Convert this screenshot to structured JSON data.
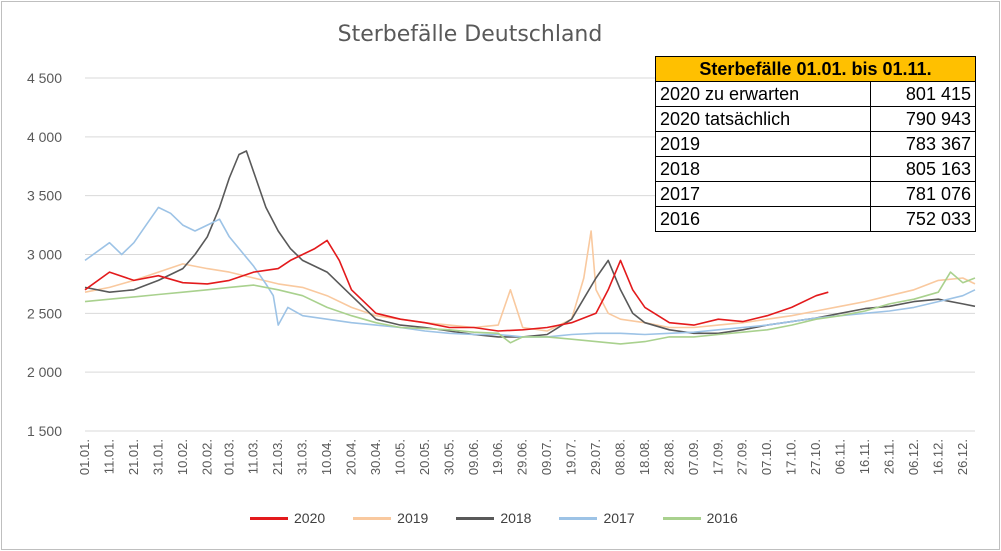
{
  "chart_data": {
    "type": "line",
    "title": "Sterbefälle Deutschland",
    "xlabel": "",
    "ylabel": "",
    "ylim": [
      1500,
      4500
    ],
    "yticks": [
      "1 500",
      "2 000",
      "2 500",
      "3 000",
      "3 500",
      "4 000",
      "4 500"
    ],
    "ytick_values": [
      1500,
      2000,
      2500,
      3000,
      3500,
      4000,
      4500
    ],
    "x_domain": [
      "01.01.",
      "31.12."
    ],
    "xticks": [
      "01.01.",
      "11.01.",
      "21.01.",
      "31.01.",
      "10.02.",
      "20.02.",
      "01.03.",
      "11.03.",
      "21.03.",
      "31.03.",
      "10.04.",
      "20.04.",
      "30.04.",
      "10.05.",
      "20.05.",
      "30.05.",
      "09.06.",
      "19.06.",
      "29.06.",
      "09.07.",
      "19.07.",
      "29.07.",
      "08.08.",
      "18.08.",
      "28.08.",
      "07.09.",
      "17.09.",
      "27.09.",
      "07.10.",
      "17.10.",
      "27.10.",
      "06.11.",
      "16.11.",
      "26.11.",
      "06.12.",
      "16.12.",
      "26.12."
    ],
    "legend_position": "bottom",
    "grid": "horizontal",
    "series": [
      {
        "name": "2020",
        "color": "#e31a1c",
        "x": [
          "01.01.",
          "11.01.",
          "21.01.",
          "31.01.",
          "10.02.",
          "20.02.",
          "01.03.",
          "11.03.",
          "21.03.",
          "26.03.",
          "31.03.",
          "05.04.",
          "10.04.",
          "15.04.",
          "20.04.",
          "30.04.",
          "10.05.",
          "20.05.",
          "30.05.",
          "09.06.",
          "19.06.",
          "29.06.",
          "09.07.",
          "19.07.",
          "29.07.",
          "03.08.",
          "08.08.",
          "13.08.",
          "18.08.",
          "28.08.",
          "07.09.",
          "17.09.",
          "27.09.",
          "07.10.",
          "17.10.",
          "27.10.",
          "01.11."
        ],
        "values": [
          2700,
          2850,
          2780,
          2820,
          2760,
          2750,
          2780,
          2850,
          2880,
          2950,
          3000,
          3050,
          3120,
          2950,
          2700,
          2500,
          2450,
          2420,
          2380,
          2380,
          2350,
          2360,
          2380,
          2420,
          2500,
          2700,
          2950,
          2700,
          2550,
          2420,
          2400,
          2450,
          2430,
          2480,
          2550,
          2650,
          2680
        ]
      },
      {
        "name": "2019",
        "color": "#f9c99f",
        "x": [
          "01.01.",
          "11.01.",
          "21.01.",
          "31.01.",
          "10.02.",
          "20.02.",
          "01.03.",
          "11.03.",
          "21.03.",
          "31.03.",
          "10.04.",
          "20.04.",
          "30.04.",
          "10.05.",
          "20.05.",
          "30.05.",
          "09.06.",
          "19.06.",
          "24.06.",
          "29.06.",
          "09.07.",
          "19.07.",
          "24.07.",
          "27.07.",
          "29.07.",
          "03.08.",
          "08.08.",
          "18.08.",
          "28.08.",
          "07.09.",
          "17.09.",
          "27.09.",
          "07.10.",
          "17.10.",
          "27.10.",
          "06.11.",
          "16.11.",
          "26.11.",
          "06.12.",
          "16.12.",
          "26.12.",
          "31.12."
        ],
        "values": [
          2680,
          2720,
          2780,
          2850,
          2920,
          2880,
          2850,
          2800,
          2750,
          2720,
          2650,
          2550,
          2480,
          2450,
          2420,
          2400,
          2380,
          2400,
          2700,
          2380,
          2350,
          2450,
          2800,
          3200,
          2700,
          2500,
          2450,
          2420,
          2380,
          2380,
          2400,
          2420,
          2450,
          2480,
          2520,
          2560,
          2600,
          2650,
          2700,
          2780,
          2800,
          2750
        ]
      },
      {
        "name": "2018",
        "color": "#595959",
        "x": [
          "01.01.",
          "11.01.",
          "21.01.",
          "31.01.",
          "10.02.",
          "15.02.",
          "20.02.",
          "25.02.",
          "01.03.",
          "05.03.",
          "08.03.",
          "11.03.",
          "16.03.",
          "21.03.",
          "26.03.",
          "31.03.",
          "10.04.",
          "20.04.",
          "30.04.",
          "10.05.",
          "20.05.",
          "30.05.",
          "09.06.",
          "19.06.",
          "29.06.",
          "09.07.",
          "19.07.",
          "29.07.",
          "03.08.",
          "08.08.",
          "13.08.",
          "18.08.",
          "28.08.",
          "07.09.",
          "17.09.",
          "27.09.",
          "07.10.",
          "17.10.",
          "27.10.",
          "06.11.",
          "16.11.",
          "26.11.",
          "06.12.",
          "16.12.",
          "26.12.",
          "31.12."
        ],
        "values": [
          2720,
          2680,
          2700,
          2780,
          2880,
          3000,
          3150,
          3400,
          3650,
          3850,
          3880,
          3700,
          3400,
          3200,
          3050,
          2950,
          2850,
          2650,
          2450,
          2400,
          2380,
          2350,
          2320,
          2300,
          2300,
          2320,
          2450,
          2800,
          2950,
          2700,
          2500,
          2420,
          2360,
          2330,
          2330,
          2360,
          2400,
          2430,
          2460,
          2500,
          2540,
          2560,
          2600,
          2620,
          2580,
          2560
        ]
      },
      {
        "name": "2017",
        "color": "#9dc3e6",
        "x": [
          "01.01.",
          "11.01.",
          "16.01.",
          "21.01.",
          "26.01.",
          "31.01.",
          "05.02.",
          "10.02.",
          "15.02.",
          "20.02.",
          "25.02.",
          "01.03.",
          "11.03.",
          "16.03.",
          "19.03.",
          "21.03.",
          "25.03.",
          "31.03.",
          "10.04.",
          "20.04.",
          "30.04.",
          "10.05.",
          "20.05.",
          "30.05.",
          "09.06.",
          "19.06.",
          "29.06.",
          "09.07.",
          "19.07.",
          "29.07.",
          "08.08.",
          "18.08.",
          "28.08.",
          "07.09.",
          "17.09.",
          "27.09.",
          "07.10.",
          "17.10.",
          "27.10.",
          "06.11.",
          "16.11.",
          "26.11.",
          "06.12.",
          "16.12.",
          "26.12.",
          "31.12."
        ],
        "values": [
          2950,
          3100,
          3000,
          3100,
          3250,
          3400,
          3350,
          3250,
          3200,
          3250,
          3300,
          3150,
          2900,
          2750,
          2650,
          2400,
          2550,
          2480,
          2450,
          2420,
          2400,
          2380,
          2350,
          2330,
          2320,
          2320,
          2300,
          2300,
          2320,
          2330,
          2330,
          2320,
          2330,
          2340,
          2360,
          2380,
          2400,
          2430,
          2460,
          2480,
          2500,
          2520,
          2550,
          2600,
          2650,
          2700
        ]
      },
      {
        "name": "2016",
        "color": "#a9d18e",
        "x": [
          "01.01.",
          "11.01.",
          "21.01.",
          "31.01.",
          "10.02.",
          "20.02.",
          "01.03.",
          "11.03.",
          "21.03.",
          "31.03.",
          "10.04.",
          "20.04.",
          "30.04.",
          "10.05.",
          "20.05.",
          "30.05.",
          "09.06.",
          "19.06.",
          "24.06.",
          "29.06.",
          "09.07.",
          "19.07.",
          "29.07.",
          "08.08.",
          "18.08.",
          "28.08.",
          "07.09.",
          "17.09.",
          "27.09.",
          "07.10.",
          "17.10.",
          "27.10.",
          "06.11.",
          "16.11.",
          "26.11.",
          "06.12.",
          "16.12.",
          "21.12.",
          "26.12.",
          "31.12."
        ],
        "values": [
          2600,
          2620,
          2640,
          2660,
          2680,
          2700,
          2720,
          2740,
          2700,
          2650,
          2550,
          2480,
          2420,
          2380,
          2370,
          2360,
          2340,
          2330,
          2250,
          2300,
          2300,
          2280,
          2260,
          2240,
          2260,
          2300,
          2300,
          2320,
          2340,
          2360,
          2400,
          2450,
          2480,
          2520,
          2580,
          2620,
          2680,
          2850,
          2760,
          2800
        ]
      }
    ]
  },
  "summary_table": {
    "header": "Sterbefälle 01.01. bis 01.11.",
    "rows": [
      {
        "label": "2020 zu erwarten",
        "value": "801 415"
      },
      {
        "label": "2020 tatsächlich",
        "value": "790 943"
      },
      {
        "label": "2019",
        "value": "783 367"
      },
      {
        "label": "2018",
        "value": "805 163"
      },
      {
        "label": "2017",
        "value": "781 076"
      },
      {
        "label": "2016",
        "value": "752 033"
      }
    ]
  }
}
